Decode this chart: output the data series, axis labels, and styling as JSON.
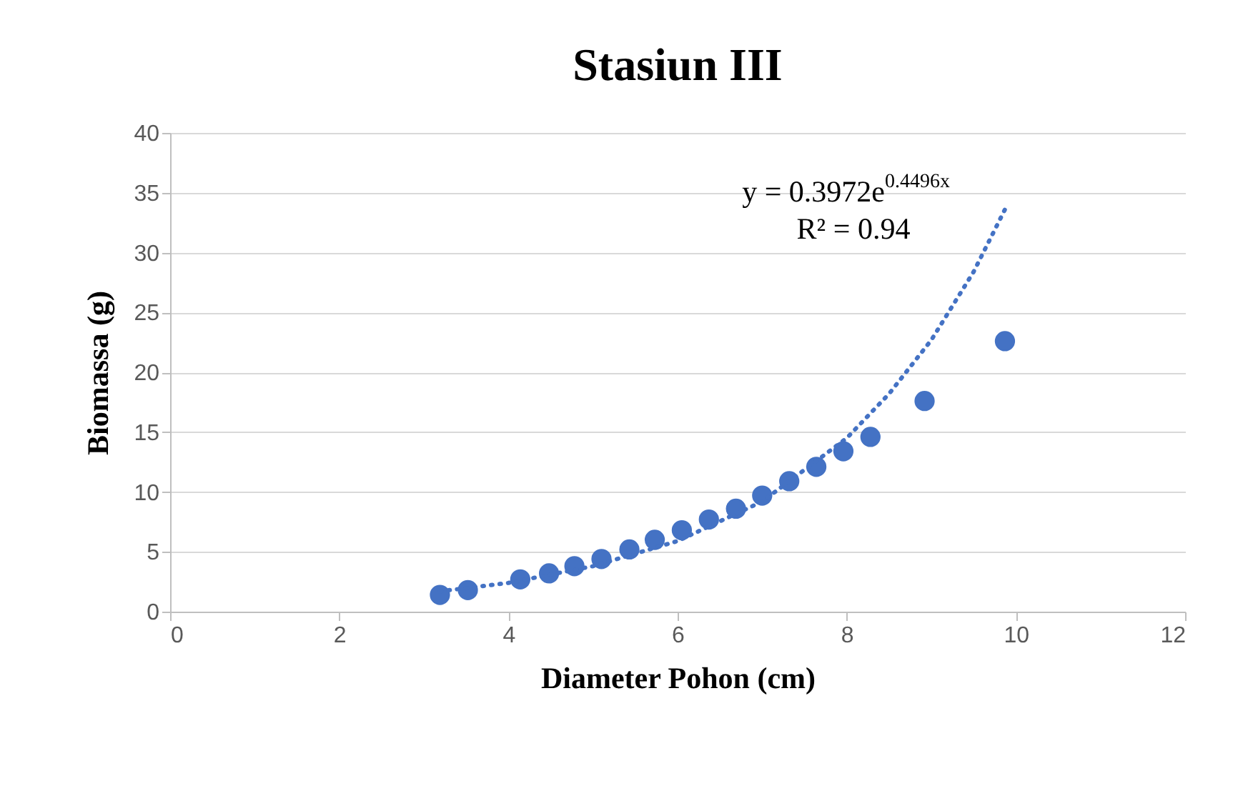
{
  "chart_data": {
    "type": "scatter",
    "title": "Stasiun III",
    "xlabel": "Diameter Pohon (cm)",
    "ylabel": "Biomassa (g)",
    "xlim": [
      0,
      12
    ],
    "xticks": [
      0,
      2,
      4,
      6,
      8,
      10,
      12
    ],
    "ylim": [
      0,
      40
    ],
    "yticks": [
      0,
      5,
      10,
      15,
      20,
      25,
      30,
      35,
      40
    ],
    "grid": "y",
    "marker": "circle",
    "series": [
      {
        "color": "#4472c4",
        "x": [
          3.19,
          3.52,
          4.14,
          4.48,
          4.78,
          5.1,
          5.43,
          5.73,
          6.05,
          6.37,
          6.69,
          7.0,
          7.32,
          7.64,
          7.96,
          8.28,
          8.92,
          9.87
        ],
        "values": [
          1.4,
          1.8,
          2.7,
          3.2,
          3.8,
          4.4,
          5.2,
          6.0,
          6.8,
          7.7,
          8.6,
          9.7,
          10.9,
          12.1,
          13.4,
          14.6,
          17.6,
          22.6
        ]
      },
      {
        "type": "line",
        "line_style": "dotted",
        "marker": "none",
        "color": "#4472c4",
        "x": [
          3.19,
          4,
          5,
          6,
          7,
          8,
          8.5,
          9,
          9.5,
          9.87
        ],
        "values": [
          1.7,
          2.4,
          3.8,
          5.9,
          9.2,
          14.5,
          18.2,
          22.7,
          28.4,
          33.6
        ]
      }
    ],
    "annotations": [
      "y = 0.3972e$^{0.4496x}$",
      "R² = 0.94"
    ]
  }
}
